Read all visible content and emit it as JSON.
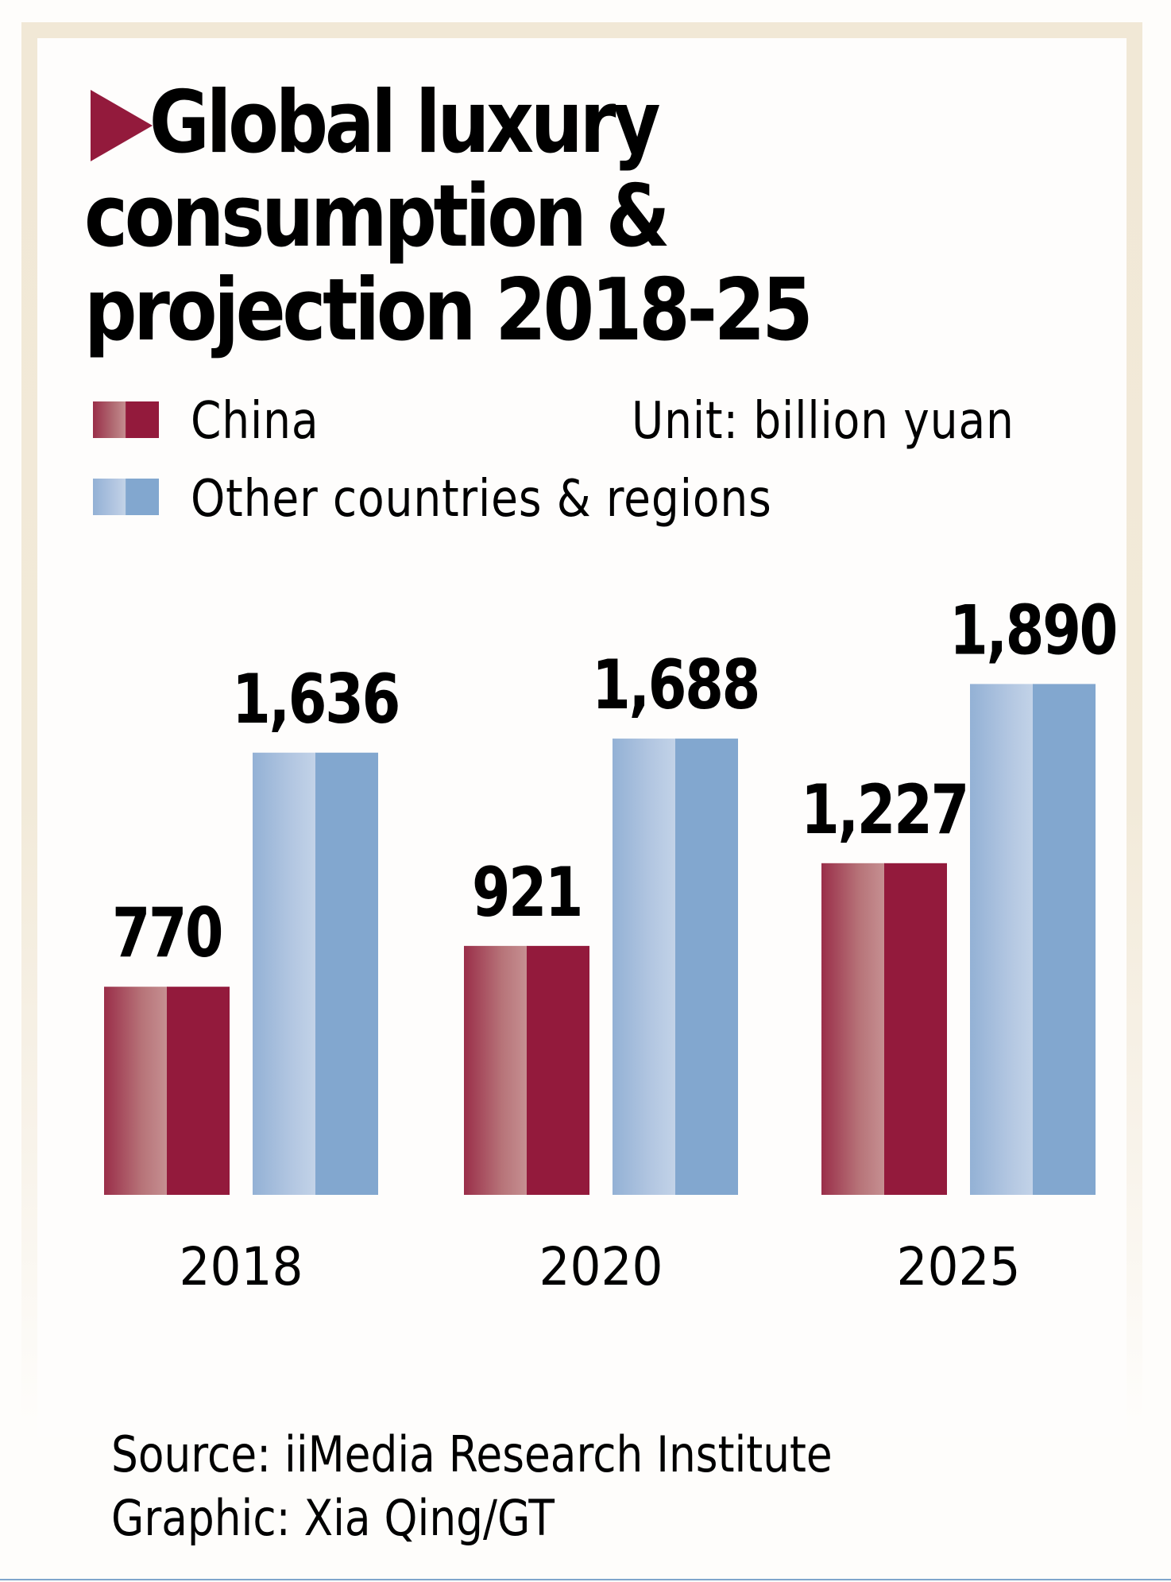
{
  "header": {
    "title_lines": [
      "Global luxury",
      "consumption &",
      "projection 2018-25"
    ],
    "title_icon": "triangle-right-icon"
  },
  "legend": {
    "items": [
      {
        "label": "China",
        "color": "#931a3c"
      },
      {
        "label": "Other countries & regions",
        "color": "#82a7cf"
      }
    ],
    "unit": "Unit: billion yuan"
  },
  "chart_data": {
    "type": "bar",
    "title": "Global luxury consumption & projection 2018-25",
    "xlabel": "",
    "ylabel": "billion yuan",
    "unit": "billion yuan",
    "categories": [
      "2018",
      "2020",
      "2025"
    ],
    "series": [
      {
        "name": "China",
        "values": [
          770,
          921,
          1227
        ],
        "labels": [
          "770",
          "921",
          "1,227"
        ],
        "color": "#931a3c"
      },
      {
        "name": "Other countries & regions",
        "values": [
          1636,
          1688,
          1890
        ],
        "labels": [
          "1,636",
          "1,688",
          "1,890"
        ],
        "color": "#82a7cf"
      }
    ],
    "ylim": [
      0,
      1890
    ],
    "grid": false,
    "legend": "top-left",
    "axes_visible": false
  },
  "footer": {
    "source": "Source: iiMedia Research Institute",
    "credit": "Graphic: Xia Qing/GT"
  }
}
